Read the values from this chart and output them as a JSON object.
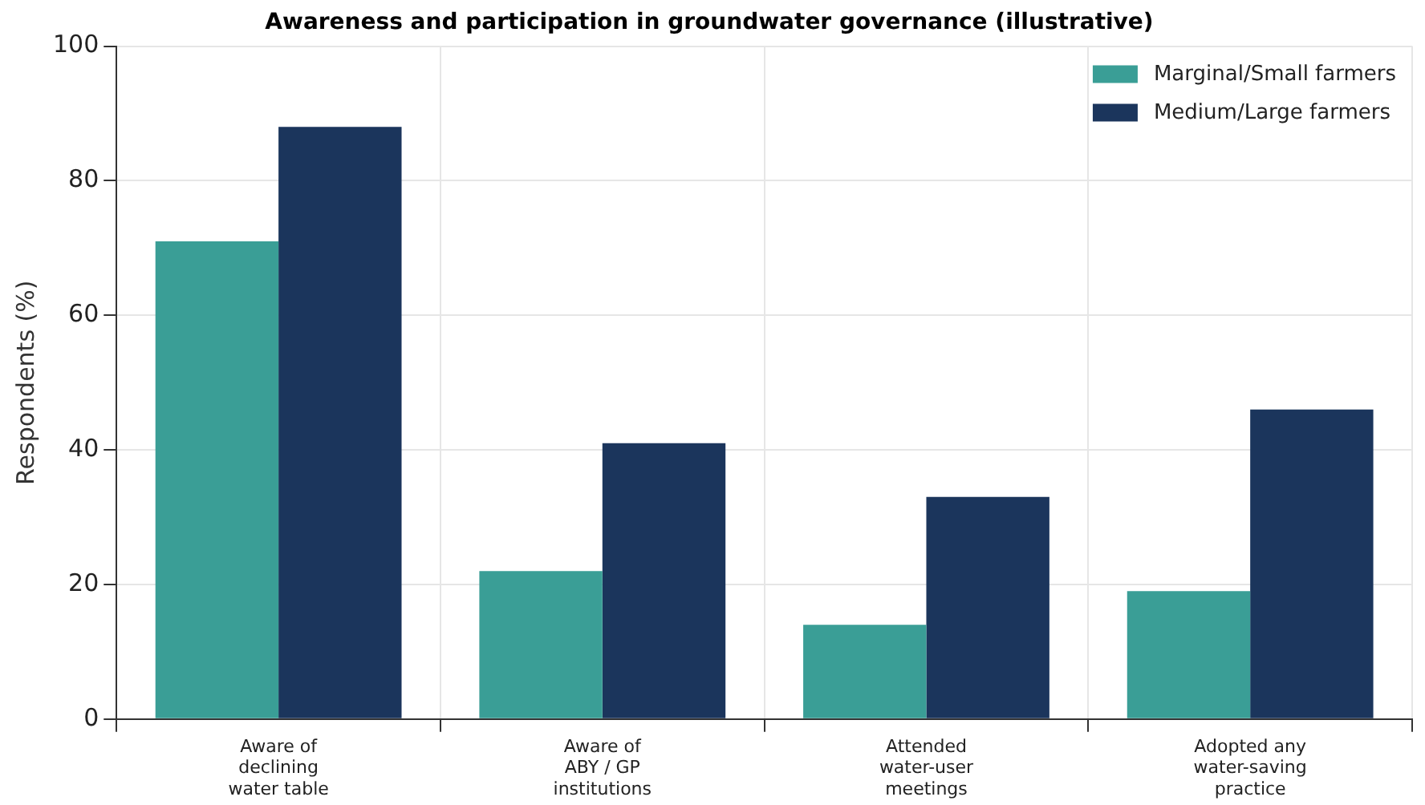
{
  "chart_data": {
    "type": "bar",
    "title": "Awareness and participation in groundwater governance (illustrative)",
    "ylabel": "Respondents (%)",
    "categories": [
      "Aware of\ndeclining\nwater table",
      "Aware of\nABY / GP\ninstitutions",
      "Attended\nwater-user\nmeetings",
      "Adopted any\nwater-saving\npractice"
    ],
    "series": [
      {
        "name": "Marginal/Small farmers",
        "color": "#3a9e96",
        "values": [
          71,
          22,
          14,
          19
        ]
      },
      {
        "name": "Medium/Large farmers",
        "color": "#1b355c",
        "values": [
          88,
          41,
          33,
          46
        ]
      }
    ],
    "ylim": [
      0,
      100
    ],
    "yticks": [
      0,
      20,
      40,
      60,
      80,
      100
    ],
    "grid": true,
    "legend": "top right"
  }
}
